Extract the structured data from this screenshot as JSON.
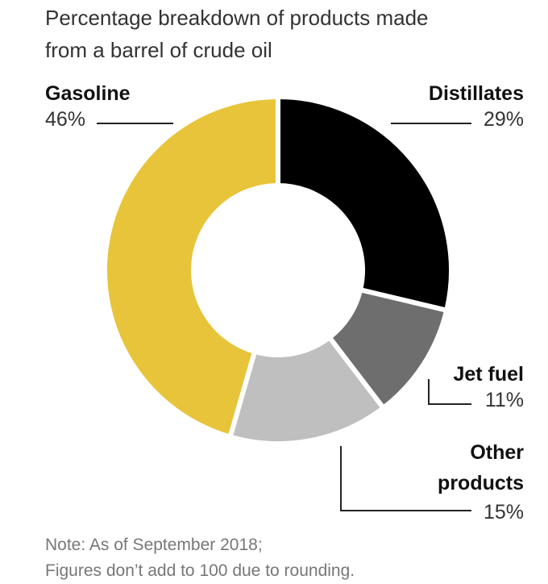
{
  "title_line1": "Percentage breakdown of products made",
  "title_line2": "from a barrel of crude oil",
  "chart_data": {
    "type": "pie",
    "donut": true,
    "categories": [
      "Distillates",
      "Jet fuel",
      "Other products",
      "Gasoline"
    ],
    "values": [
      29,
      11,
      15,
      46
    ],
    "value_labels": [
      "29%",
      "11%",
      "15%",
      "46%"
    ],
    "colors": [
      "#000000",
      "#6e6e6e",
      "#bfbfbf",
      "#e8c43a"
    ],
    "other_label_lines": [
      "Other",
      "products"
    ]
  },
  "note_line1": "Note: As of September 2018;",
  "note_line2": "Figures don’t add to 100 due to rounding."
}
